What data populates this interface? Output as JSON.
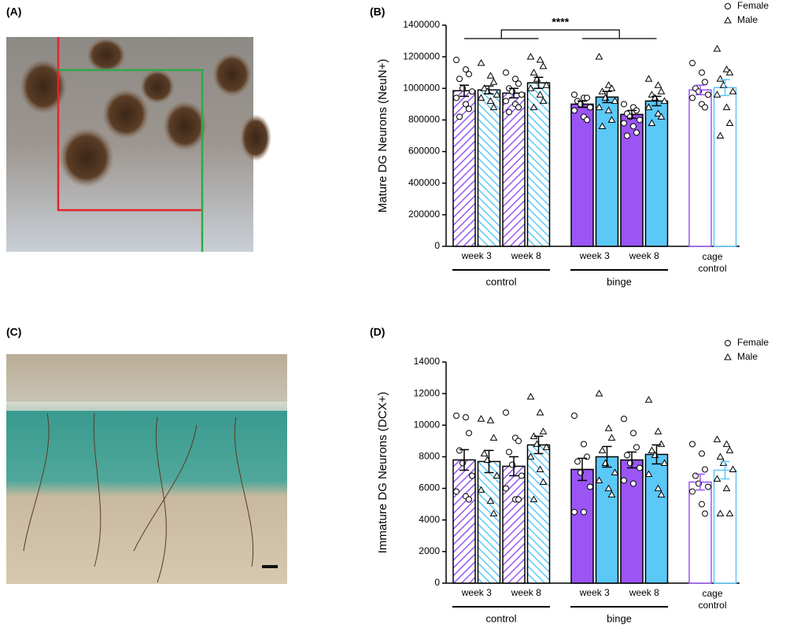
{
  "panel_labels": [
    "(A)",
    "(B)",
    "(C)",
    "(D)"
  ],
  "chart_data": [
    {
      "type": "bar",
      "ylabel": "Mature DG Neurons (NeuN+)",
      "annotation": "****",
      "ylim": [
        0,
        1400000
      ],
      "yticks": [
        0,
        200000,
        400000,
        600000,
        800000,
        1000000,
        1200000,
        1400000
      ],
      "groups": [
        {
          "name": "control",
          "style": "hatched",
          "categories": [
            "week 3",
            "week 8"
          ]
        },
        {
          "name": "binge",
          "style": "solid",
          "categories": [
            "week 3",
            "week 8"
          ]
        },
        {
          "name": "cage control",
          "style": "open",
          "categories": [
            null
          ]
        }
      ],
      "series": [
        {
          "name": "Female",
          "marker": "circle",
          "color": "#9b55f5",
          "values": [
            985000,
            970000,
            900000,
            835000,
            990000
          ],
          "errors": [
            35000,
            30000,
            20000,
            25000,
            30000
          ],
          "points": [
            [
              1180000,
              1120000,
              1090000,
              1060000,
              1000000,
              980000,
              940000,
              900000,
              870000,
              820000
            ],
            [
              1100000,
              1060000,
              1030000,
              1000000,
              980000,
              960000,
              920000,
              900000,
              880000,
              850000
            ],
            [
              960000,
              940000,
              940000,
              920000,
              900000,
              880000,
              860000,
              820000,
              800000
            ],
            [
              900000,
              880000,
              860000,
              840000,
              820000,
              800000,
              780000,
              760000,
              720000,
              700000
            ],
            [
              1160000,
              1100000,
              1040000,
              1000000,
              980000,
              960000,
              940000,
              900000,
              880000
            ]
          ]
        },
        {
          "name": "Male",
          "marker": "triangle",
          "color": "#5bc8f7",
          "values": [
            990000,
            1035000,
            945000,
            920000,
            1005000
          ],
          "errors": [
            25000,
            35000,
            35000,
            30000,
            50000
          ],
          "points": [
            [
              1160000,
              1080000,
              1040000,
              1000000,
              980000,
              960000,
              940000,
              920000,
              880000
            ],
            [
              1200000,
              1180000,
              1140000,
              1100000,
              1060000,
              1020000,
              1000000,
              960000,
              920000,
              880000
            ],
            [
              1200000,
              1020000,
              1000000,
              980000,
              940000,
              920000,
              880000,
              860000,
              800000,
              760000
            ],
            [
              1060000,
              1020000,
              980000,
              960000,
              940000,
              920000,
              880000,
              840000,
              820000,
              780000
            ],
            [
              1250000,
              1120000,
              1100000,
              1060000,
              1020000,
              980000,
              960000,
              880000,
              780000,
              700000
            ]
          ]
        }
      ]
    },
    {
      "type": "bar",
      "ylabel": "Immature DG Neurons (DCX+)",
      "ylim": [
        0,
        14000
      ],
      "yticks": [
        0,
        2000,
        4000,
        6000,
        8000,
        10000,
        12000,
        14000
      ],
      "groups": [
        {
          "name": "control",
          "style": "hatched",
          "categories": [
            "week 3",
            "week 8"
          ]
        },
        {
          "name": "binge",
          "style": "solid",
          "categories": [
            "week 3",
            "week 8"
          ]
        },
        {
          "name": "cage control",
          "style": "open",
          "categories": [
            null
          ]
        }
      ],
      "series": [
        {
          "name": "Female",
          "marker": "circle",
          "color": "#9b55f5",
          "values": [
            7800,
            7400,
            7200,
            7800,
            6400
          ],
          "errors": [
            650,
            600,
            700,
            500,
            500
          ],
          "points": [
            [
              10600,
              10500,
              9500,
              8400,
              7600,
              6800,
              5800,
              5500,
              5300
            ],
            [
              10800,
              9200,
              9000,
              8300,
              7500,
              6800,
              6000,
              5300,
              5300
            ],
            [
              10600,
              8800,
              8000,
              7700,
              7000,
              6100,
              4500,
              4500
            ],
            [
              10400,
              9500,
              8600,
              8100,
              7600,
              7300,
              6500,
              6300
            ],
            [
              8800,
              8200,
              7200,
              6800,
              6300,
              6100,
              5800,
              5000,
              4400
            ]
          ]
        },
        {
          "name": "Male",
          "marker": "triangle",
          "color": "#5bc8f7",
          "values": [
            7700,
            8750,
            8000,
            8150,
            7150
          ],
          "errors": [
            700,
            550,
            650,
            600,
            550
          ],
          "points": [
            [
              10400,
              10300,
              9200,
              8200,
              7800,
              6800,
              5900,
              5200,
              4400
            ],
            [
              11800,
              10800,
              9600,
              9300,
              8800,
              8600,
              8000,
              7200,
              6400,
              5300
            ],
            [
              12000,
              9800,
              9200,
              8400,
              7600,
              7000,
              6500,
              6000,
              5600
            ],
            [
              11600,
              9600,
              8800,
              8400,
              8100,
              7600,
              6900,
              6000,
              5600
            ],
            [
              9100,
              8800,
              8400,
              8000,
              7600,
              7200,
              6600,
              6000,
              4400,
              4400
            ]
          ]
        }
      ]
    }
  ]
}
